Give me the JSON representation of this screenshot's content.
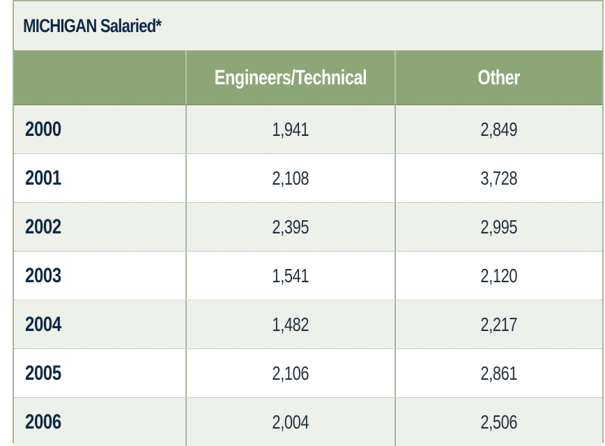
{
  "table": {
    "title": "MICHIGAN Salaried*",
    "columns": [
      "",
      "Engineers/Technical",
      "Other"
    ],
    "rows": [
      {
        "year": "2000",
        "engineers_technical": "1,941",
        "other": "2,849"
      },
      {
        "year": "2001",
        "engineers_technical": "2,108",
        "other": "3,728"
      },
      {
        "year": "2002",
        "engineers_technical": "2,395",
        "other": "2,995"
      },
      {
        "year": "2003",
        "engineers_technical": "1,541",
        "other": "2,120"
      },
      {
        "year": "2004",
        "engineers_technical": "1,482",
        "other": "2,217"
      },
      {
        "year": "2005",
        "engineers_technical": "2,106",
        "other": "2,861"
      },
      {
        "year": "2006",
        "engineers_technical": "2,004",
        "other": "2,506"
      }
    ]
  },
  "colors": {
    "header_bg": "#8da678",
    "title_bg": "#eef0ea",
    "stripe_bg": "#eef1ea",
    "title_text": "#0f2a45",
    "border": "#a7b799"
  }
}
